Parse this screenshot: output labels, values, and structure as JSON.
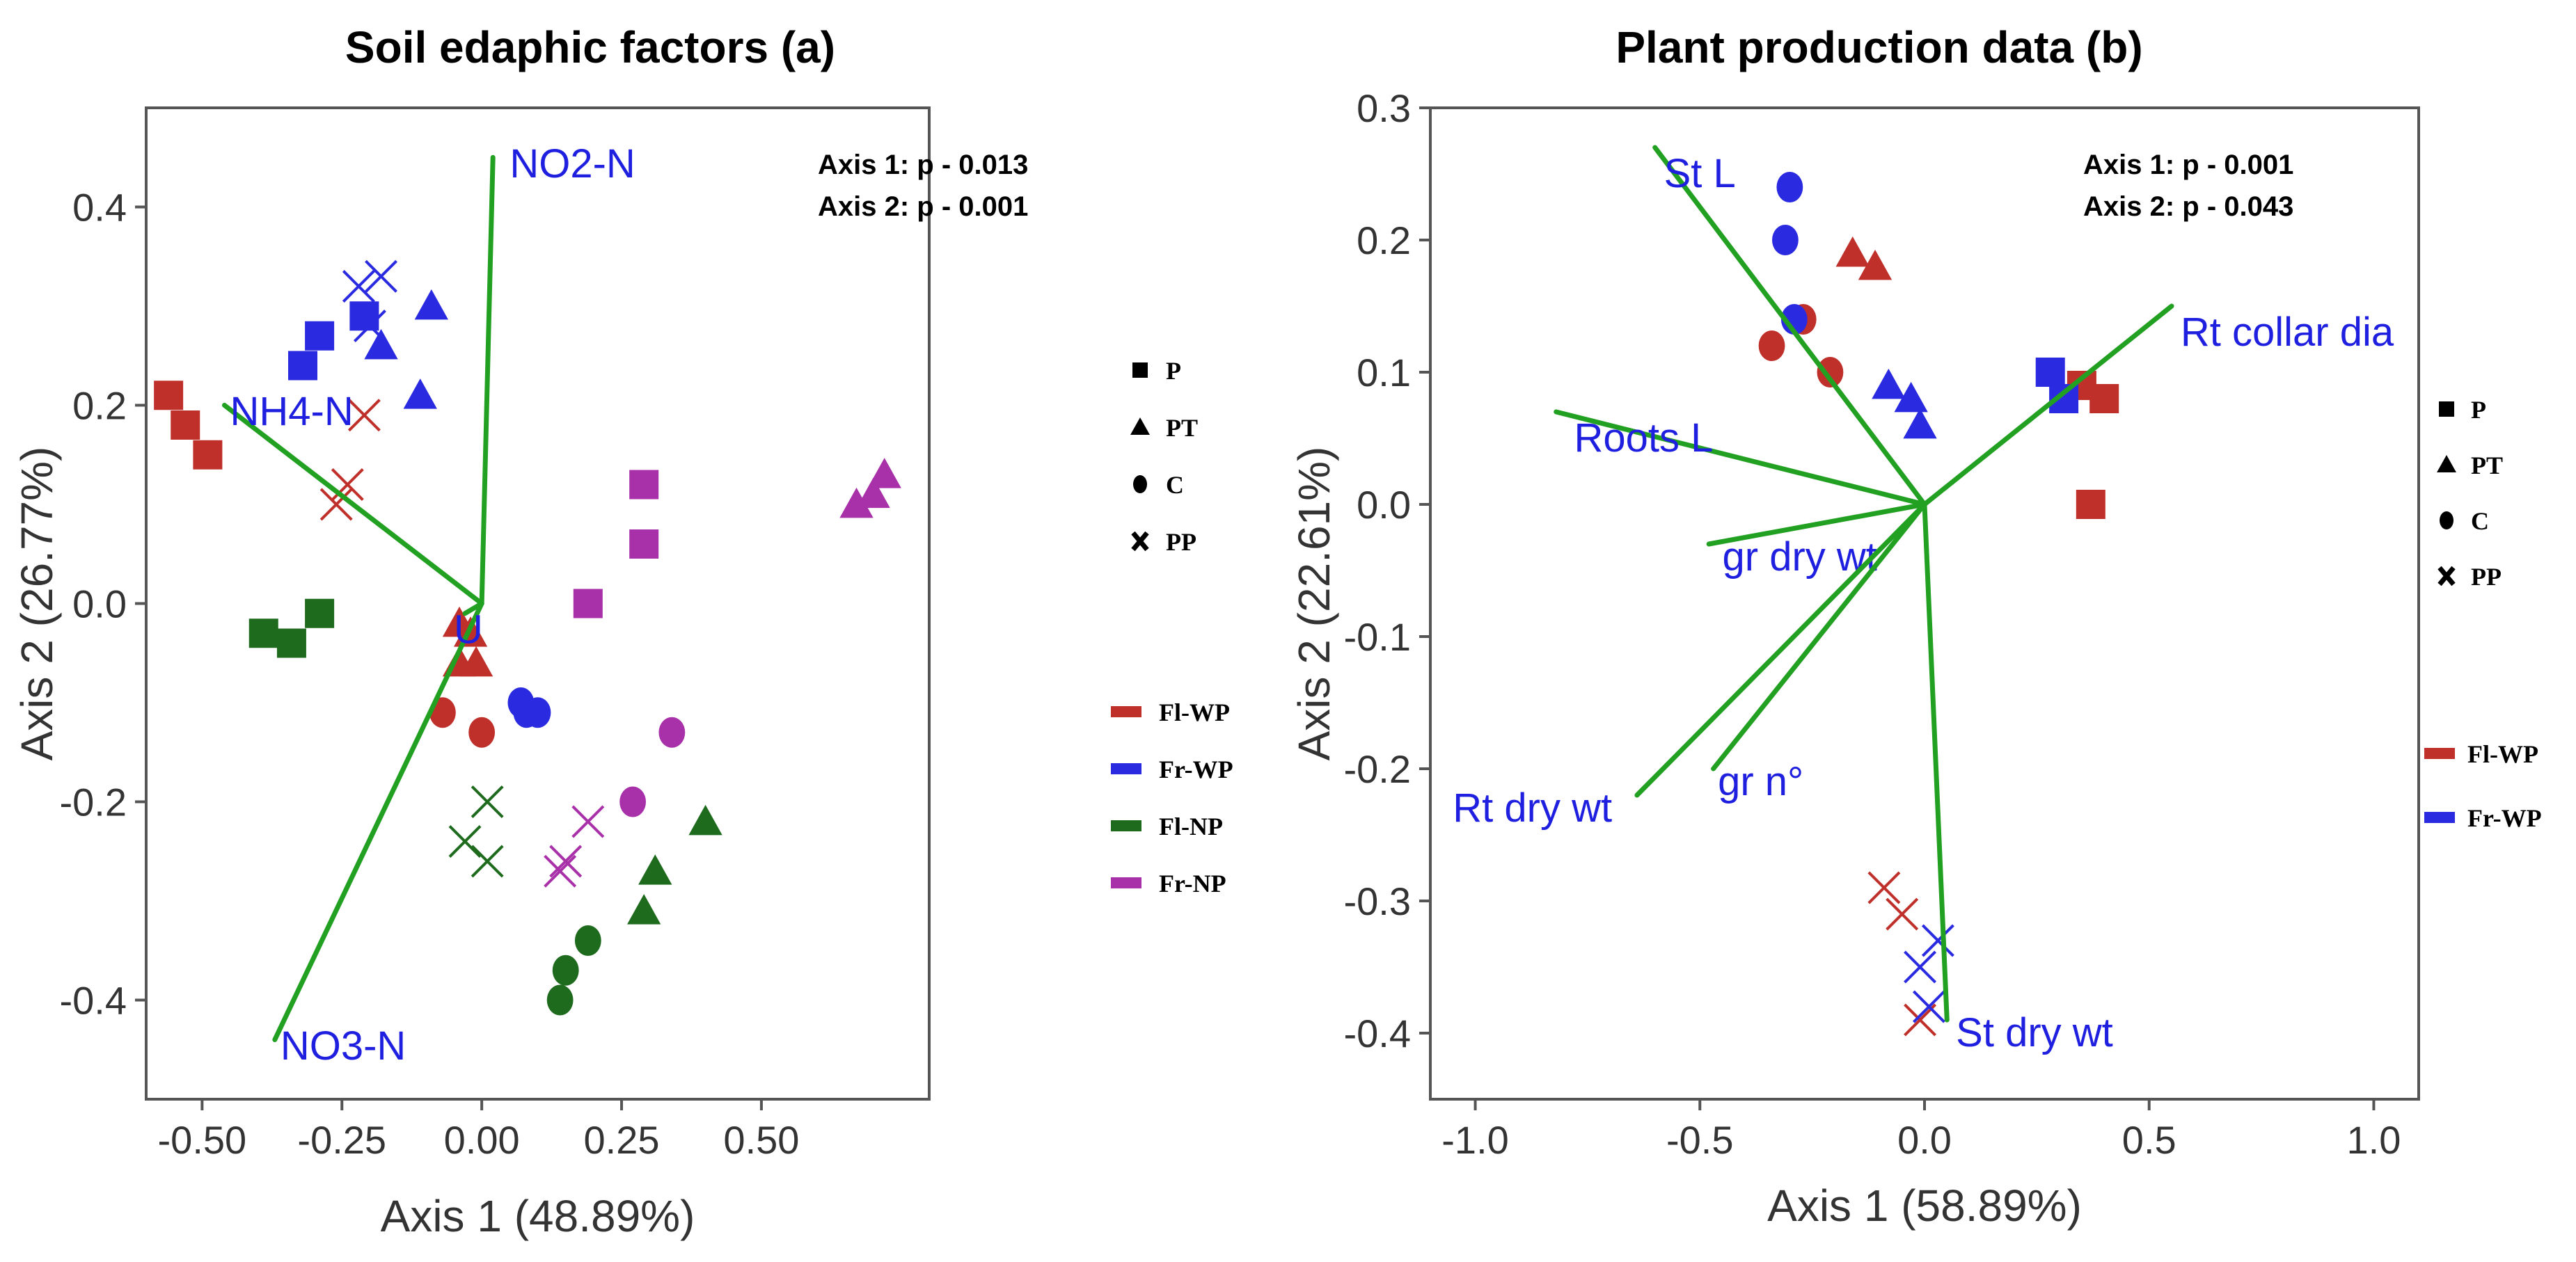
{
  "chart_data": [
    {
      "type": "scatter",
      "title": "Soil edaphic factors (a)",
      "xlabel": "Axis 1 (48.89%)",
      "ylabel": "Axis 2 (26.77%)",
      "xlim": [
        -0.6,
        0.8
      ],
      "ylim": [
        -0.5,
        0.5
      ],
      "xticks": [
        -0.5,
        -0.25,
        0.0,
        0.25,
        0.5
      ],
      "xtick_labels": [
        "-0.50",
        "-0.25",
        "0.00",
        "0.25",
        "0.50"
      ],
      "yticks": [
        -0.4,
        -0.2,
        0.0,
        0.2,
        0.4
      ],
      "ytick_labels": [
        "-0.4",
        "-0.2",
        "0.0",
        "0.2",
        "0.4"
      ],
      "grid": false,
      "stats": [
        "Axis 1: p - 0.013",
        "Axis 2: p - 0.001"
      ],
      "vectors": [
        {
          "label": "NO2-N",
          "x": 0.02,
          "y": 0.45
        },
        {
          "label": "NH4-N",
          "x": -0.46,
          "y": 0.2
        },
        {
          "label": "NO3-N",
          "x": -0.37,
          "y": -0.44
        },
        {
          "label": "U",
          "x": -0.03,
          "y": -0.01
        }
      ],
      "shape_legend": [
        {
          "label": "P",
          "shape": "square"
        },
        {
          "label": "PT",
          "shape": "triangle"
        },
        {
          "label": "C",
          "shape": "circle"
        },
        {
          "label": "PP",
          "shape": "cross"
        }
      ],
      "color_legend": [
        {
          "label": "Fl-WP",
          "color": "#c0302a"
        },
        {
          "label": "Fr-WP",
          "color": "#2a2ae0"
        },
        {
          "label": "Fl-NP",
          "color": "#1e6b1e"
        },
        {
          "label": "Fr-NP",
          "color": "#a830a8"
        }
      ],
      "series": [
        {
          "name": "Fl-WP",
          "color": "#c0302a",
          "points": [
            {
              "shape": "square",
              "x": -0.56,
              "y": 0.21
            },
            {
              "shape": "square",
              "x": -0.53,
              "y": 0.18
            },
            {
              "shape": "square",
              "x": -0.49,
              "y": 0.15
            },
            {
              "shape": "cross",
              "x": -0.21,
              "y": 0.19
            },
            {
              "shape": "cross",
              "x": -0.24,
              "y": 0.12
            },
            {
              "shape": "cross",
              "x": -0.26,
              "y": 0.1
            },
            {
              "shape": "triangle",
              "x": -0.04,
              "y": -0.02
            },
            {
              "shape": "triangle",
              "x": -0.04,
              "y": -0.06
            },
            {
              "shape": "triangle",
              "x": -0.02,
              "y": -0.03
            },
            {
              "shape": "triangle",
              "x": -0.01,
              "y": -0.06
            },
            {
              "shape": "circle",
              "x": -0.07,
              "y": -0.11
            },
            {
              "shape": "circle",
              "x": 0.0,
              "y": -0.13
            }
          ]
        },
        {
          "name": "Fr-WP",
          "color": "#2a2ae0",
          "points": [
            {
              "shape": "square",
              "x": -0.32,
              "y": 0.24
            },
            {
              "shape": "square",
              "x": -0.29,
              "y": 0.27
            },
            {
              "shape": "square",
              "x": -0.21,
              "y": 0.29
            },
            {
              "shape": "cross",
              "x": -0.22,
              "y": 0.32
            },
            {
              "shape": "cross",
              "x": -0.18,
              "y": 0.33
            },
            {
              "shape": "cross",
              "x": -0.2,
              "y": 0.28
            },
            {
              "shape": "triangle",
              "x": -0.09,
              "y": 0.3
            },
            {
              "shape": "triangle",
              "x": -0.18,
              "y": 0.26
            },
            {
              "shape": "triangle",
              "x": -0.11,
              "y": 0.21
            },
            {
              "shape": "circle",
              "x": 0.07,
              "y": -0.1
            },
            {
              "shape": "circle",
              "x": 0.08,
              "y": -0.11
            },
            {
              "shape": "circle",
              "x": 0.1,
              "y": -0.11
            }
          ]
        },
        {
          "name": "Fl-NP",
          "color": "#1e6b1e",
          "points": [
            {
              "shape": "square",
              "x": -0.39,
              "y": -0.03
            },
            {
              "shape": "square",
              "x": -0.34,
              "y": -0.04
            },
            {
              "shape": "square",
              "x": -0.29,
              "y": -0.01
            },
            {
              "shape": "cross",
              "x": 0.01,
              "y": -0.2
            },
            {
              "shape": "cross",
              "x": -0.03,
              "y": -0.24
            },
            {
              "shape": "cross",
              "x": 0.01,
              "y": -0.26
            },
            {
              "shape": "triangle",
              "x": 0.4,
              "y": -0.22
            },
            {
              "shape": "triangle",
              "x": 0.31,
              "y": -0.27
            },
            {
              "shape": "triangle",
              "x": 0.29,
              "y": -0.31
            },
            {
              "shape": "circle",
              "x": 0.19,
              "y": -0.34
            },
            {
              "shape": "circle",
              "x": 0.15,
              "y": -0.37
            },
            {
              "shape": "circle",
              "x": 0.14,
              "y": -0.4
            }
          ]
        },
        {
          "name": "Fr-NP",
          "color": "#a830a8",
          "points": [
            {
              "shape": "square",
              "x": 0.29,
              "y": 0.12
            },
            {
              "shape": "square",
              "x": 0.29,
              "y": 0.06
            },
            {
              "shape": "square",
              "x": 0.19,
              "y": -0.0
            },
            {
              "shape": "triangle",
              "x": 0.72,
              "y": 0.13
            },
            {
              "shape": "triangle",
              "x": 0.7,
              "y": 0.11
            },
            {
              "shape": "triangle",
              "x": 0.67,
              "y": 0.1
            },
            {
              "shape": "circle",
              "x": 0.34,
              "y": -0.13
            },
            {
              "shape": "circle",
              "x": 0.27,
              "y": -0.2
            },
            {
              "shape": "cross",
              "x": 0.19,
              "y": -0.22
            },
            {
              "shape": "cross",
              "x": 0.15,
              "y": -0.26
            },
            {
              "shape": "cross",
              "x": 0.14,
              "y": -0.27
            }
          ]
        }
      ]
    },
    {
      "type": "scatter",
      "title": "Plant production data (b)",
      "xlabel": "Axis 1 (58.89%)",
      "ylabel": "Axis 2 (22.61%)",
      "xlim": [
        -1.1,
        1.1
      ],
      "ylim": [
        -0.45,
        0.3
      ],
      "xticks": [
        -1.0,
        -0.5,
        0.0,
        0.5,
        1.0
      ],
      "xtick_labels": [
        "-1.0",
        "-0.5",
        "0.0",
        "0.5",
        "1.0"
      ],
      "yticks": [
        -0.4,
        -0.3,
        -0.2,
        -0.1,
        0.0,
        0.1,
        0.2,
        0.3
      ],
      "ytick_labels": [
        "-0.4",
        "-0.3",
        "-0.2",
        "-0.1",
        "0.0",
        "0.1",
        "0.2",
        "0.3"
      ],
      "grid": false,
      "stats": [
        "Axis 1: p - 0.001",
        "Axis 2: p - 0.043"
      ],
      "vectors": [
        {
          "label": "St L",
          "x": -0.6,
          "y": 0.27
        },
        {
          "label": "Rt collar dia",
          "x": 0.55,
          "y": 0.15
        },
        {
          "label": "Roots L",
          "x": -0.82,
          "y": 0.07
        },
        {
          "label": "gr dry wt",
          "x": -0.48,
          "y": -0.03
        },
        {
          "label": "Rt dry wt",
          "x": -0.64,
          "y": -0.22
        },
        {
          "label": "gr n°",
          "x": -0.47,
          "y": -0.2
        },
        {
          "label": "St dry wt",
          "x": 0.05,
          "y": -0.39
        }
      ],
      "shape_legend": [
        {
          "label": "P",
          "shape": "square"
        },
        {
          "label": "PT",
          "shape": "triangle"
        },
        {
          "label": "C",
          "shape": "circle"
        },
        {
          "label": "PP",
          "shape": "cross"
        }
      ],
      "color_legend": [
        {
          "label": "Fl-WP",
          "color": "#c0302a"
        },
        {
          "label": "Fr-WP",
          "color": "#2a2ae0"
        }
      ],
      "series": [
        {
          "name": "Fl-WP",
          "color": "#c0302a",
          "points": [
            {
              "shape": "square",
              "x": 0.35,
              "y": 0.09
            },
            {
              "shape": "square",
              "x": 0.4,
              "y": 0.08
            },
            {
              "shape": "square",
              "x": 0.37,
              "y": -0.0
            },
            {
              "shape": "triangle",
              "x": -0.16,
              "y": 0.19
            },
            {
              "shape": "triangle",
              "x": -0.11,
              "y": 0.18
            },
            {
              "shape": "circle",
              "x": -0.34,
              "y": 0.12
            },
            {
              "shape": "circle",
              "x": -0.27,
              "y": 0.14
            },
            {
              "shape": "circle",
              "x": -0.21,
              "y": 0.1
            },
            {
              "shape": "cross",
              "x": -0.05,
              "y": -0.31
            },
            {
              "shape": "cross",
              "x": -0.09,
              "y": -0.29
            },
            {
              "shape": "cross",
              "x": -0.01,
              "y": -0.39
            }
          ]
        },
        {
          "name": "Fr-WP",
          "color": "#2a2ae0",
          "points": [
            {
              "shape": "square",
              "x": 0.28,
              "y": 0.1
            },
            {
              "shape": "square",
              "x": 0.31,
              "y": 0.08
            },
            {
              "shape": "triangle",
              "x": -0.08,
              "y": 0.09
            },
            {
              "shape": "triangle",
              "x": -0.03,
              "y": 0.08
            },
            {
              "shape": "triangle",
              "x": -0.01,
              "y": 0.06
            },
            {
              "shape": "circle",
              "x": -0.3,
              "y": 0.24
            },
            {
              "shape": "circle",
              "x": -0.31,
              "y": 0.2
            },
            {
              "shape": "circle",
              "x": -0.29,
              "y": 0.14
            },
            {
              "shape": "cross",
              "x": 0.03,
              "y": -0.33
            },
            {
              "shape": "cross",
              "x": -0.01,
              "y": -0.35
            },
            {
              "shape": "cross",
              "x": 0.01,
              "y": -0.38
            }
          ]
        }
      ]
    }
  ]
}
